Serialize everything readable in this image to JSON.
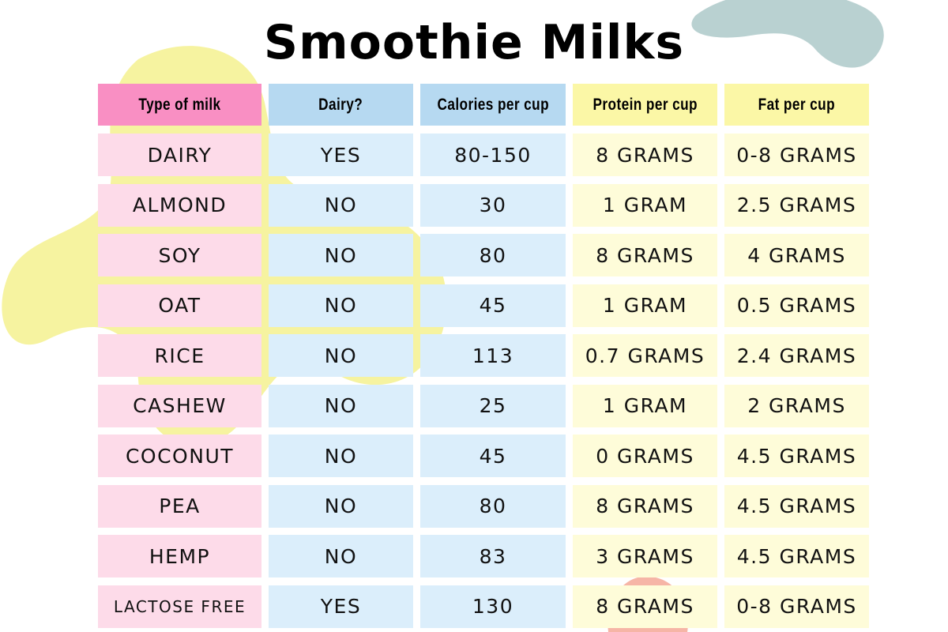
{
  "title": "Smoothie Milks",
  "colors": {
    "pink_header": "#f98fc3",
    "pink_cell": "#fddbe9",
    "blue_header": "#b6d9f1",
    "blue_cell": "#dbeefb",
    "yellow_header": "#fbf7a6",
    "yellow_cell": "#fefcd9",
    "yellow_blob": "#f4f18f",
    "slate_blob": "#b9d1d1",
    "coral_blob": "#f5a897"
  },
  "table": {
    "headers": [
      "Type of milk",
      "Dairy?",
      "Calories per cup",
      "Protein per cup",
      "Fat per cup"
    ],
    "rows": [
      [
        "DAIRY",
        "YES",
        "80-150",
        "8 GRAMS",
        "0-8 GRAMS"
      ],
      [
        "ALMOND",
        "NO",
        "30",
        "1 GRAM",
        "2.5 GRAMS"
      ],
      [
        "SOY",
        "NO",
        "80",
        "8 GRAMS",
        "4 GRAMS"
      ],
      [
        "OAT",
        "NO",
        "45",
        "1 GRAM",
        "0.5 GRAMS"
      ],
      [
        "RICE",
        "NO",
        "113",
        "0.7 GRAMS",
        "2.4 GRAMS"
      ],
      [
        "CASHEW",
        "NO",
        "25",
        "1 GRAM",
        "2 GRAMS"
      ],
      [
        "COCONUT",
        "NO",
        "45",
        "0 GRAMS",
        "4.5 GRAMS"
      ],
      [
        "PEA",
        "NO",
        "80",
        "8 GRAMS",
        "4.5 GRAMS"
      ],
      [
        "HEMP",
        "NO",
        "83",
        "3 GRAMS",
        "4.5 GRAMS"
      ],
      [
        "LACTOSE FREE",
        "YES",
        "130",
        "8 GRAMS",
        "0-8 GRAMS"
      ]
    ]
  }
}
